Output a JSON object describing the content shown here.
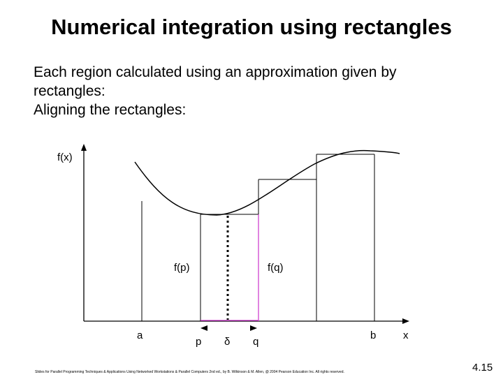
{
  "slide": {
    "title": "Numerical integration using rectangles",
    "body_lines": [
      "Each region calculated using an approximation given by",
      "rectangles:",
      "Aligning the rectangles:"
    ],
    "footer": "Slides for Parallel Programming Techniques & Applications Using Networked Workstations & Parallel Computers 2nd ed., by B. Wilkinson & M. Allen, @ 2004 Pearson Education Inc. All rights reserved.",
    "slide_number": "4.15"
  },
  "diagram": {
    "y_axis_label": "f(x)",
    "x_axis_label": "x",
    "tick_a": "a",
    "tick_p": "p",
    "tick_delta": "δ",
    "tick_q": "q",
    "tick_b": "b",
    "label_fp": "f(p)",
    "label_fq": "f(q)",
    "colors": {
      "lines": "#000000",
      "highlight_edge": "#cc33cc"
    }
  }
}
